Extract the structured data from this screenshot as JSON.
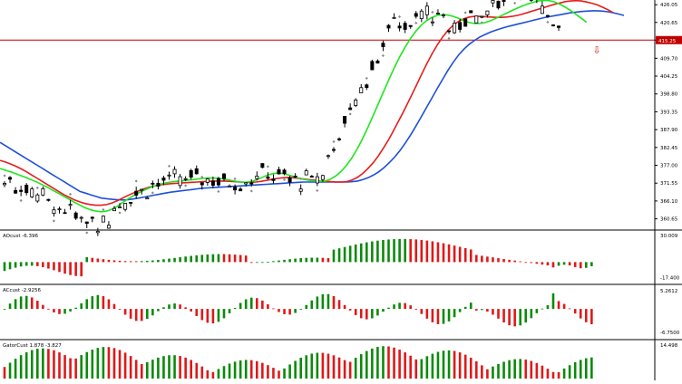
{
  "chart_data": [
    {
      "type": "candlestick",
      "title": "",
      "y_ticks": [
        "426.05",
        "420.65",
        "415.25",
        "409.70",
        "404.25",
        "398.80",
        "393.35",
        "387.90",
        "382.45",
        "377.00",
        "371.55",
        "366.10",
        "360.65"
      ],
      "ylim": [
        357.5,
        427.5
      ],
      "current_price_label": "415.25",
      "current_price": 415.25,
      "moving_averages": [
        {
          "name": "",
          "color": "#1e4fd8",
          "values": [
            384,
            383,
            382,
            381,
            380,
            379,
            378,
            377,
            376,
            375,
            374,
            373,
            372,
            371,
            370,
            369,
            368.5,
            368,
            367.5,
            367,
            366.8,
            366.6,
            366.5,
            366.4,
            366.5,
            366.7,
            367,
            367.3,
            367.6,
            367.9,
            368.2,
            368.5,
            368.8,
            369,
            369.2,
            369.4,
            369.6,
            369.8,
            370,
            370.1,
            370.2,
            370.3,
            370.4,
            370.5,
            370.6,
            370.7,
            370.8,
            370.9,
            371,
            371.1,
            371.2,
            371.3,
            371.4,
            371.5,
            371.6,
            371.7,
            371.8,
            371.9,
            371.9,
            371.9,
            371.9,
            371.9,
            371.9,
            371.9,
            371.9,
            371.9,
            372,
            372.2,
            372.6,
            373.2,
            374,
            375,
            376.3,
            377.8,
            379.5,
            381.5,
            383.8,
            386.3,
            389,
            391.8,
            394.7,
            397.6,
            400.5,
            403.3,
            406,
            408.5,
            410.7,
            412.5,
            414,
            415.2,
            416.2,
            417,
            417.7,
            418.3,
            418.8,
            419.3,
            419.7,
            420.1,
            420.5,
            420.9,
            421.3,
            421.7,
            422.1,
            422.4,
            422.7,
            423,
            423.3,
            423.6,
            423.8,
            424,
            424.1,
            424.2,
            424.2,
            424.1,
            423.9,
            423.6,
            423.2,
            422.8
          ]
        },
        {
          "name": "",
          "color": "#e51c1c",
          "values": [
            378.5,
            378,
            377.4,
            376.7,
            375.9,
            375,
            374,
            373,
            372,
            371,
            370,
            369,
            368,
            367.2,
            366.4,
            365.8,
            365.3,
            365,
            364.8,
            364.8,
            365,
            365.5,
            366.2,
            367,
            367.8,
            368.5,
            369.2,
            369.8,
            370.3,
            370.7,
            371,
            371.2,
            371.4,
            371.5,
            371.6,
            371.7,
            371.8,
            371.9,
            372,
            372.1,
            372.2,
            372.2,
            372.2,
            372.1,
            372,
            371.9,
            371.8,
            371.8,
            371.9,
            372.1,
            372.4,
            372.7,
            373,
            373.2,
            373.3,
            373.2,
            373,
            372.8,
            372.6,
            372.4,
            372.2,
            372.1,
            372,
            371.9,
            371.9,
            372,
            372.5,
            373.3,
            374.5,
            376,
            377.8,
            380,
            382.5,
            385.2,
            388.2,
            391.3,
            394.5,
            397.8,
            401.2,
            404.6,
            407.9,
            411,
            413.8,
            416.2,
            418.2,
            419.8,
            421,
            421.8,
            422.3,
            422.5,
            422.5,
            422.4,
            422.3,
            422.2,
            422.2,
            422.3,
            422.5,
            422.8,
            423.2,
            423.7,
            424.2,
            424.7,
            425.2,
            425.7,
            426.2,
            426.6,
            427,
            427.2,
            427.3,
            427.2,
            426.9,
            426.5,
            426,
            425.3,
            424.5,
            423.6
          ]
        },
        {
          "name": "",
          "color": "#1ee61e",
          "values": [
            376,
            375.5,
            375,
            374.4,
            373.8,
            373.2,
            372.5,
            371.8,
            371,
            370.2,
            369.3,
            368.4,
            367.5,
            366.6,
            365.7,
            364.8,
            364,
            363.4,
            363,
            362.8,
            363,
            363.6,
            364.5,
            365.6,
            366.7,
            367.7,
            368.6,
            369.4,
            370.1,
            370.7,
            371.2,
            371.6,
            371.9,
            372.1,
            372.2,
            372.4,
            372.6,
            372.8,
            373,
            373.1,
            373.1,
            373,
            372.8,
            372.5,
            372.2,
            371.9,
            371.8,
            372,
            372.5,
            373.2,
            373.9,
            374.4,
            374.6,
            374.5,
            374.1,
            373.6,
            373.1,
            372.7,
            372.4,
            372.2,
            372.1,
            372.2,
            372.8,
            373.8,
            375.2,
            377,
            379.3,
            382,
            385.2,
            388.6,
            392.3,
            396,
            399.8,
            403.5,
            407,
            410.3,
            413.2,
            415.8,
            418,
            419.8,
            421.2,
            422.2,
            422.8,
            423,
            422.9,
            422.5,
            421.9,
            421.2,
            420.6,
            420.3,
            420.3,
            420.6,
            421.2,
            421.9,
            422.7,
            423.5,
            424.3,
            425,
            425.7,
            426.3,
            426.8,
            427.2,
            427.4,
            427.3,
            426.9,
            426.2,
            425.3,
            424.3,
            423.1,
            421.9,
            420.7
          ]
        }
      ],
      "sell_arrow_label": "⇩"
    },
    {
      "type": "histogram",
      "label": "AOcust -6.396",
      "y_ticks": [
        "30.009",
        "-17.400"
      ],
      "ylim": [
        -22,
        34
      ],
      "bar_up_color": "#0a8a0a",
      "bar_down_color": "#e01818"
    },
    {
      "type": "histogram",
      "label": "ACcust -2.9256",
      "y_ticks": [
        "5.2612",
        "-6.7500"
      ],
      "ylim": [
        -8,
        6.5
      ],
      "bar_up_color": "#0a8a0a",
      "bar_down_color": "#e01818"
    },
    {
      "type": "histogram",
      "label": "GatorCust 1.878 -3.827",
      "y_ticks": [
        "14.498"
      ],
      "ylim": [
        0,
        16
      ],
      "bar_up_color": "#0a8a0a",
      "bar_down_color": "#e01818"
    }
  ],
  "colors": {
    "background": "#ffffff",
    "axis": "#000000",
    "price_line": "#c00000",
    "price_label_bg": "#c00000",
    "price_label_text": "#ffffff",
    "candle": "#000000",
    "fractal": "#8a8a8a"
  },
  "icons": {
    "sell_arrow": "down-arrow-icon",
    "fractal": "fractal-marker-icon"
  }
}
